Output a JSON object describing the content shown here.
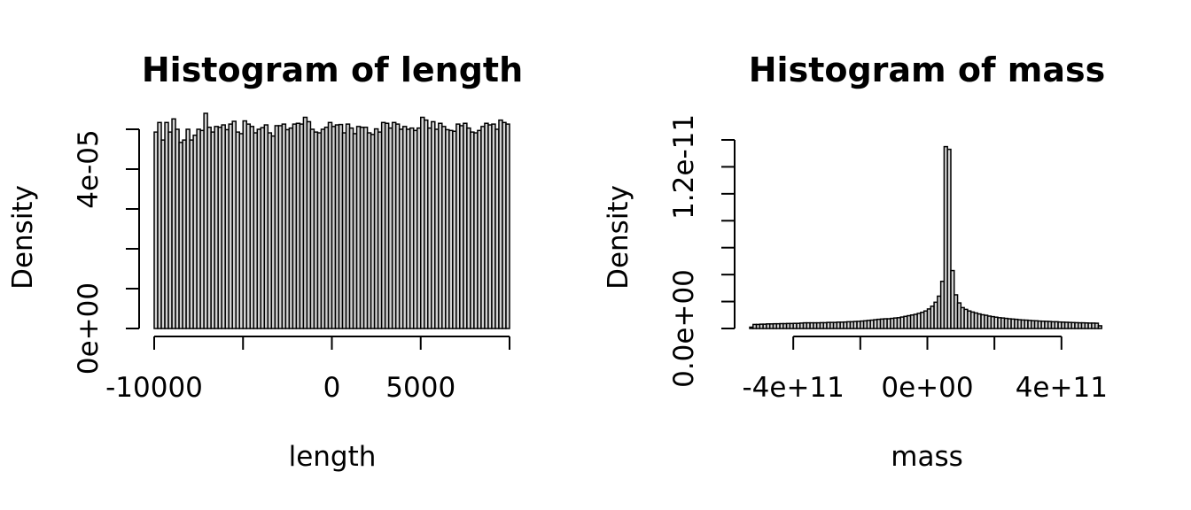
{
  "chart_data": [
    {
      "type": "bar",
      "title": "Histogram of length",
      "xlabel": "length",
      "ylabel": "Density",
      "xlim": [
        -10000,
        10000
      ],
      "ylim": [
        0,
        5e-05
      ],
      "x_ticks": [
        -10000,
        -5000,
        0,
        5000,
        10000
      ],
      "x_tick_labels": [
        "-10000",
        "",
        "0",
        "5000",
        ""
      ],
      "y_ticks": [
        0,
        1e-05,
        2e-05,
        3e-05,
        4e-05,
        5e-05
      ],
      "y_tick_labels": [
        "0e+00",
        "",
        "",
        "",
        "4e-05",
        ""
      ],
      "bin_start": -10000,
      "bin_width": 200,
      "values": [
        4.93e-05,
        5.17e-05,
        4.73e-05,
        5.17e-05,
        4.93e-05,
        5.26e-05,
        5e-05,
        4.67e-05,
        4.73e-05,
        5e-05,
        4.73e-05,
        4.85e-05,
        5e-05,
        4.97e-05,
        5.4e-05,
        5.05e-05,
        4.93e-05,
        5.07e-05,
        5.05e-05,
        5.11e-05,
        4.99e-05,
        5.13e-05,
        5.2e-05,
        4.93e-05,
        4.89e-05,
        5.21e-05,
        5.13e-05,
        5.07e-05,
        4.91e-05,
        5e-05,
        5.04e-05,
        5.11e-05,
        4.91e-05,
        4.83e-05,
        5.09e-05,
        5.09e-05,
        5.13e-05,
        4.99e-05,
        5.03e-05,
        5.13e-05,
        5.15e-05,
        5.13e-05,
        5.3e-05,
        5.19e-05,
        5e-05,
        4.93e-05,
        4.91e-05,
        5e-05,
        5.05e-05,
        5.17e-05,
        5.07e-05,
        5.11e-05,
        5.12e-05,
        4.91e-05,
        5.13e-05,
        5.03e-05,
        4.89e-05,
        5.07e-05,
        5.05e-05,
        5.05e-05,
        4.91e-05,
        4.87e-05,
        5.01e-05,
        4.93e-05,
        5.17e-05,
        5.15e-05,
        5.03e-05,
        5.17e-05,
        5.13e-05,
        5e-05,
        5.07e-05,
        5e-05,
        5.03e-05,
        4.97e-05,
        5.03e-05,
        5.3e-05,
        5.23e-05,
        5.03e-05,
        5.19e-05,
        5e-05,
        5.15e-05,
        5.07e-05,
        4.99e-05,
        4.97e-05,
        4.95e-05,
        5.13e-05,
        5.09e-05,
        5.15e-05,
        5.03e-05,
        4.93e-05,
        4.91e-05,
        4.97e-05,
        5.07e-05,
        5.15e-05,
        5.11e-05,
        5.13e-05,
        5e-05,
        5.23e-05,
        5.17e-05,
        5.13e-05
      ]
    },
    {
      "type": "bar",
      "title": "Histogram of mass",
      "xlabel": "mass",
      "ylabel": "Density",
      "xlim": [
        -530000000000.0,
        530000000000.0
      ],
      "ylim": [
        0,
        1.4e-11
      ],
      "x_ticks": [
        -400000000000.0,
        -200000000000.0,
        0,
        200000000000.0,
        400000000000.0
      ],
      "x_tick_labels": [
        "-4e+11",
        "",
        "0e+00",
        "",
        "4e+11"
      ],
      "y_ticks": [
        0,
        2e-12,
        4e-12,
        6e-12,
        8e-12,
        1e-11,
        1.2e-11,
        1.4e-11
      ],
      "y_tick_labels": [
        "0.0e+00",
        "",
        "",
        "",
        "",
        "",
        "1.2e-11",
        ""
      ],
      "bin_start": -530000000000.0,
      "bin_width": 10000000000.0,
      "values": [
        1e-13,
        3e-13,
        3e-13,
        3.2e-13,
        3.2e-13,
        3.4e-13,
        3.4e-13,
        3.5e-13,
        3.5e-13,
        3.6e-13,
        3.6e-13,
        3.7e-13,
        3.7e-13,
        3.8e-13,
        3.8e-13,
        4e-13,
        4.2e-13,
        4.2e-13,
        4.2e-13,
        4.2e-13,
        4.2e-13,
        4.3e-13,
        4.3e-13,
        4.5e-13,
        4.5e-13,
        4.5e-13,
        4.7e-13,
        4.7e-13,
        4.8e-13,
        5e-13,
        5e-13,
        5.2e-13,
        5.3e-13,
        5.5e-13,
        5.7e-13,
        6e-13,
        6.2e-13,
        6.5e-13,
        6.8e-13,
        7e-13,
        7.2e-13,
        7.2e-13,
        7.5e-13,
        7.8e-13,
        8e-13,
        8.5e-13,
        9e-13,
        9.5e-13,
        1e-12,
        1.05e-12,
        1.12e-12,
        1.2e-12,
        1.3e-12,
        1.45e-12,
        1.65e-12,
        1.95e-12,
        2.4e-12,
        3.5e-12,
        1.35e-11,
        1.33e-11,
        4.3e-12,
        2.5e-12,
        1.9e-12,
        1.55e-12,
        1.42e-12,
        1.3e-12,
        1.22e-12,
        1.15e-12,
        1.08e-12,
        1.02e-12,
        9.8e-13,
        9.2e-13,
        8.8e-13,
        8.4e-13,
        8e-13,
        7.8e-13,
        7.5e-13,
        7.2e-13,
        7e-13,
        6.8e-13,
        6.5e-13,
        6.3e-13,
        6.2e-13,
        6e-13,
        5.8e-13,
        5.7e-13,
        5.5e-13,
        5.4e-13,
        5.3e-13,
        5.2e-13,
        5e-13,
        5e-13,
        4.8e-13,
        4.7e-13,
        4.6e-13,
        4.5e-13,
        4.4e-13,
        4.3e-13,
        4.2e-13,
        4.2e-13,
        4.1e-13,
        4e-13,
        4e-13,
        3.9e-13,
        2e-13
      ]
    }
  ]
}
